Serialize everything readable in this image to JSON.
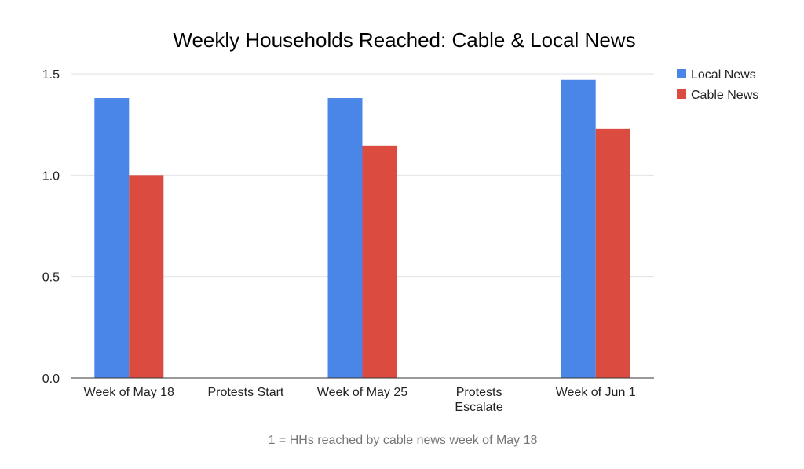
{
  "chart_data": {
    "type": "bar",
    "title": "Weekly Households Reached: Cable & Local News",
    "xlabel": "",
    "ylabel": "",
    "caption": "1 = HHs reached by cable news week of May 18",
    "categories": [
      [
        "Week of May 18"
      ],
      [
        "Protests Start"
      ],
      [
        "Week of May 25"
      ],
      [
        "Protests",
        "Escalate"
      ],
      [
        "Week of Jun 1"
      ]
    ],
    "series": [
      {
        "name": "Local News",
        "color": "#4a86e8",
        "values": [
          1.38,
          null,
          1.38,
          null,
          1.47
        ]
      },
      {
        "name": "Cable News",
        "color": "#db4b3f",
        "values": [
          1.0,
          null,
          1.145,
          null,
          1.23
        ]
      }
    ],
    "ylim": [
      0,
      1.5
    ],
    "yticks": [
      "0.0",
      "0.5",
      "1.0",
      "1.5"
    ],
    "ytick_values": [
      0,
      0.5,
      1.0,
      1.5
    ],
    "grid": true,
    "legend_position": "top-right"
  }
}
